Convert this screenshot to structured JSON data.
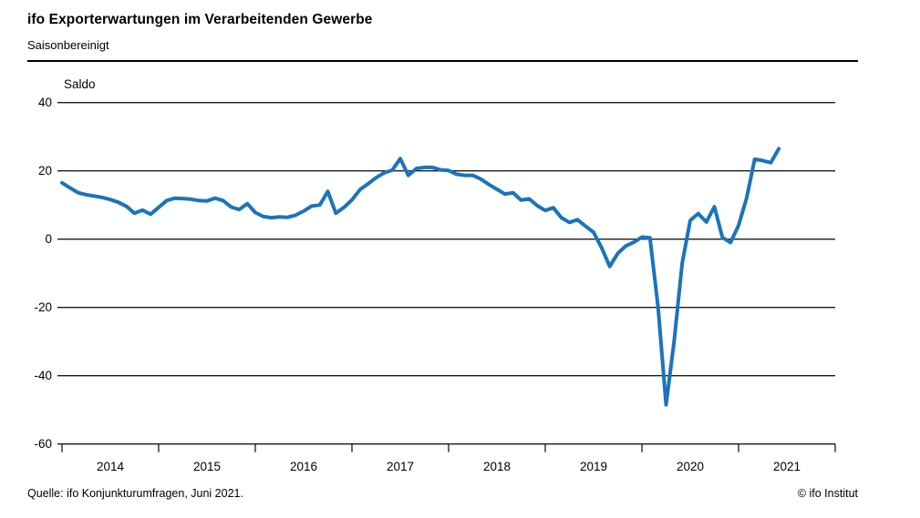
{
  "header": {
    "title": "ifo Exporterwartungen im Verarbeitenden Gewerbe",
    "subtitle": "Saisonbereinigt"
  },
  "footer": {
    "source": "Quelle: ifo Konjunkturumfragen,  Juni 2021.",
    "copyright": "© ifo Institut"
  },
  "chart_data": {
    "type": "line",
    "title": "ifo Exporterwartungen im Verarbeitenden Gewerbe",
    "subtitle": "Saisonbereinigt",
    "ylabel": "Saldo",
    "ylim": [
      -60,
      40
    ],
    "yticks": [
      40,
      20,
      0,
      -20,
      -40,
      -60
    ],
    "grid": true,
    "legend": "none",
    "x_start": "2014-01",
    "x_end": "2021-06",
    "x_frequency": "monthly",
    "xtick_years": [
      "2014",
      "2015",
      "2016",
      "2017",
      "2018",
      "2019",
      "2020",
      "2021"
    ],
    "line_color": "#1b74ba",
    "grid_color": "#1a1a1a",
    "series": [
      {
        "name": "Exporterwartungen (Saldo, saisonbereinigt)",
        "values": [
          16.5,
          15.0,
          13.6,
          13.0,
          12.6,
          12.2,
          11.6,
          10.8,
          9.6,
          7.6,
          8.5,
          7.3,
          9.3,
          11.3,
          12.0,
          11.9,
          11.7,
          11.3,
          11.2,
          12.0,
          11.3,
          9.4,
          8.7,
          10.4,
          7.8,
          6.6,
          6.3,
          6.5,
          6.4,
          7.0,
          8.2,
          9.7,
          10.0,
          14.0,
          7.6,
          9.3,
          11.5,
          14.5,
          16.2,
          18.0,
          19.4,
          20.2,
          23.6,
          18.7,
          20.7,
          21.0,
          21.0,
          20.3,
          20.1,
          19.0,
          18.7,
          18.7,
          17.6,
          16.0,
          14.6,
          13.2,
          13.6,
          11.4,
          11.8,
          9.8,
          8.4,
          9.2,
          6.3,
          4.9,
          5.7,
          3.8,
          2.0,
          -2.5,
          -8.0,
          -4.2,
          -2.0,
          -0.9,
          0.6,
          0.4,
          -19.8,
          -48.5,
          -30.0,
          -7.0,
          5.5,
          7.5,
          5.0,
          9.5,
          0.5,
          -1.0,
          4.0,
          12.0,
          23.4,
          23.0,
          22.4,
          26.5
        ]
      }
    ]
  }
}
